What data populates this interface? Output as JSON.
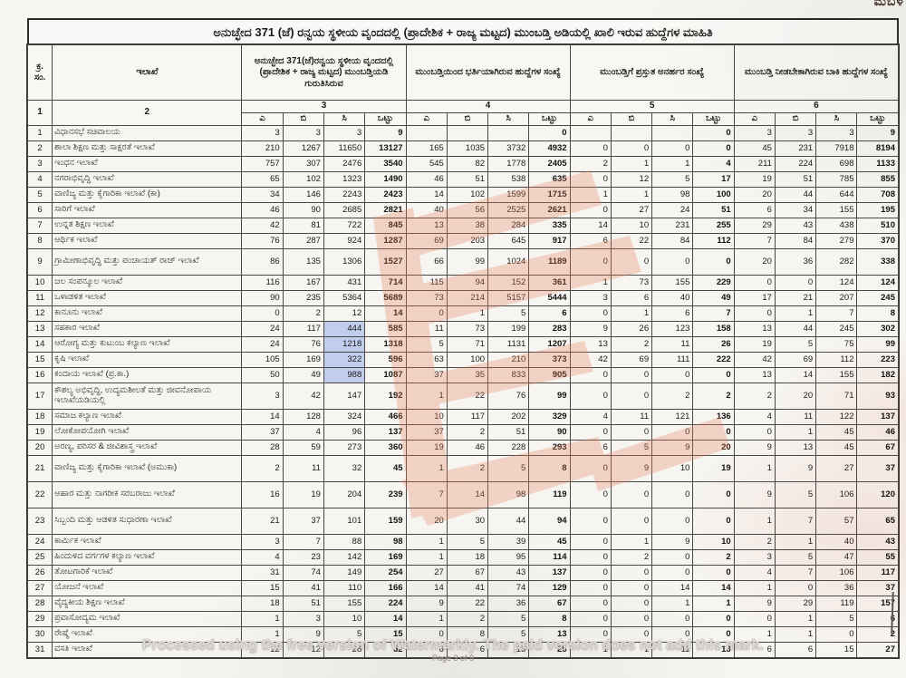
{
  "title": "ಅನುಚ್ಛೇದ 371 (ಜೆ) ರನ್ವಯ ಸ್ಥಳೀಯ ವೃಂದದಲ್ಲಿ (ಪ್ರಾದೇಶಿಕ + ರಾಜ್ಯ ಮಟ್ಟದ) ಮುಂಬಡ್ತಿ ಅಡಿಯಲ್ಲಿ ಖಾಲಿ ಇರುವ ಹುದ್ದೆಗಳ ಮಾಹಿತಿ",
  "corner_mark": "ಮಬಳ",
  "table": {
    "headers": {
      "sl_no": "ಕ್ರ. ಸಂ.",
      "department": "ಇಲಾಖೆ",
      "c3": "ಅನುಚ್ಛೇದ 371(ಜೆ)ರನ್ವಯ ಸ್ಥಳೀಯ ವೃಂದದಲ್ಲಿ (ಪ್ರಾದೇಶಿಕ + ರಾಜ್ಯ ಮಟ್ಟದ) ಮುಂಬಡ್ತಿಯಡಿ ಗುರುತಿಸಿರುವ",
      "c4": "ಮುಂಬಡ್ತಿಯಿಂದ ಭರ್ತಿಯಾಗಿರುವ ಹುದ್ದೆಗಳ ಸಂಖ್ಯೆ",
      "c5": "ಮುಂಬಡ್ತಿಗೆ ಪ್ರಸ್ತುತ ಅನರ್ಹರ ಸಂಖ್ಯೆ",
      "c6": "ಮುಂಬಡ್ತಿ ನೀಡಬೇಕಾಗಿರುವ ಬಾಕಿ ಹುದ್ದೆಗಳ ಸಂಖ್ಯೆ"
    },
    "col_numbers": [
      "1",
      "2",
      "3",
      "4",
      "5",
      "6"
    ],
    "sub_headers": [
      "ಎ",
      "ಬಿ",
      "ಸಿ",
      "ಒಟ್ಟು"
    ],
    "rows": [
      {
        "no": "1",
        "dept": "ವಿಧಾನಸಭೆ ಸಚಿವಾಲಯ",
        "c3": [
          "3",
          "3",
          "3",
          "9"
        ],
        "c4": [
          "",
          "",
          "",
          "0"
        ],
        "c5": [
          "",
          "",
          "",
          "0"
        ],
        "c6": [
          "3",
          "3",
          "3",
          "9"
        ]
      },
      {
        "no": "2",
        "dept": "ಶಾಲಾ ಶಿಕ್ಷಣ ಮತ್ತು ಸಾಕ್ಷರತೆ ಇಲಾಖೆ",
        "c3": [
          "210",
          "1267",
          "11650",
          "13127"
        ],
        "c4": [
          "165",
          "1035",
          "3732",
          "4932"
        ],
        "c5": [
          "0",
          "0",
          "0",
          "0"
        ],
        "c6": [
          "45",
          "231",
          "7918",
          "8194"
        ]
      },
      {
        "no": "3",
        "dept": "ಇಂಧನ ಇಲಾಖೆ",
        "c3": [
          "757",
          "307",
          "2476",
          "3540"
        ],
        "c4": [
          "545",
          "82",
          "1778",
          "2405"
        ],
        "c5": [
          "2",
          "1",
          "1",
          "4"
        ],
        "c6": [
          "211",
          "224",
          "698",
          "1133"
        ]
      },
      {
        "no": "4",
        "dept": "ನಗರಾಭಿವೃದ್ಧಿ ಇಲಾಖೆ",
        "c3": [
          "65",
          "102",
          "1323",
          "1490"
        ],
        "c4": [
          "46",
          "51",
          "538",
          "635"
        ],
        "c5": [
          "0",
          "12",
          "5",
          "17"
        ],
        "c6": [
          "19",
          "51",
          "785",
          "855"
        ]
      },
      {
        "no": "5",
        "dept": "ವಾಣಿಜ್ಯ ಮತ್ತು ಕೈಗಾರಿಕಾ ಇಲಾಖೆ (ಕಾ)",
        "c3": [
          "34",
          "146",
          "2243",
          "2423"
        ],
        "c4": [
          "14",
          "102",
          "1599",
          "1715"
        ],
        "c5": [
          "1",
          "1",
          "98",
          "100"
        ],
        "c6": [
          "20",
          "44",
          "644",
          "708"
        ]
      },
      {
        "no": "6",
        "dept": "ಸಾರಿಗೆ ಇಲಾಖೆ",
        "c3": [
          "46",
          "90",
          "2685",
          "2821"
        ],
        "c4": [
          "40",
          "56",
          "2525",
          "2621"
        ],
        "c5": [
          "0",
          "27",
          "24",
          "51"
        ],
        "c6": [
          "6",
          "34",
          "155",
          "195"
        ]
      },
      {
        "no": "7",
        "dept": "ಉನ್ನತ ಶಿಕ್ಷಣ ಇಲಾಖೆ",
        "c3": [
          "42",
          "81",
          "722",
          "845"
        ],
        "c4": [
          "13",
          "38",
          "284",
          "335"
        ],
        "c5": [
          "14",
          "10",
          "231",
          "255"
        ],
        "c6": [
          "29",
          "43",
          "438",
          "510"
        ]
      },
      {
        "no": "8",
        "dept": "ಆರ್ಥಿಕ ಇಲಾಖೆ",
        "c3": [
          "76",
          "287",
          "924",
          "1287"
        ],
        "c4": [
          "69",
          "203",
          "645",
          "917"
        ],
        "c5": [
          "6",
          "22",
          "84",
          "112"
        ],
        "c6": [
          "7",
          "84",
          "279",
          "370"
        ]
      },
      {
        "no": "9",
        "dept": "ಗ್ರಾಮೀಣಾಭಿವೃದ್ಧಿ ಮತ್ತು ಪಂಚಾಯತ್ ರಾಜ್ ಇಲಾಖೆ",
        "tall": true,
        "c3": [
          "86",
          "135",
          "1306",
          "1527"
        ],
        "c4": [
          "66",
          "99",
          "1024",
          "1189"
        ],
        "c5": [
          "0",
          "0",
          "0",
          "0"
        ],
        "c6": [
          "20",
          "36",
          "282",
          "338"
        ]
      },
      {
        "no": "10",
        "dept": "ಜಲ ಸಂಪನ್ಮೂಲ ಇಲಾಖೆ",
        "c3": [
          "116",
          "167",
          "431",
          "714"
        ],
        "c4": [
          "115",
          "94",
          "152",
          "361"
        ],
        "c5": [
          "1",
          "73",
          "155",
          "229"
        ],
        "c6": [
          "0",
          "0",
          "124",
          "124"
        ]
      },
      {
        "no": "11",
        "dept": "ಒಳಾಡಳಿತ ಇಲಾಖೆ",
        "c3": [
          "90",
          "235",
          "5364",
          "5689"
        ],
        "c4": [
          "73",
          "214",
          "5157",
          "5444"
        ],
        "c5": [
          "3",
          "6",
          "40",
          "49"
        ],
        "c6": [
          "17",
          "21",
          "207",
          "245"
        ]
      },
      {
        "no": "12",
        "dept": "ಕಾನೂನು ಇಲಾಖೆ",
        "c3": [
          "0",
          "2",
          "12",
          "14"
        ],
        "c4": [
          "0",
          "1",
          "5",
          "6"
        ],
        "c5": [
          "0",
          "1",
          "6",
          "7"
        ],
        "c6": [
          "0",
          "1",
          "7",
          "8"
        ]
      },
      {
        "no": "13",
        "dept": "ಸಹಕಾರ ಇಲಾಖೆ",
        "hl": true,
        "c3": [
          "24",
          "117",
          "444",
          "585"
        ],
        "c4": [
          "11",
          "73",
          "199",
          "283"
        ],
        "c5": [
          "9",
          "26",
          "123",
          "158"
        ],
        "c6": [
          "13",
          "44",
          "245",
          "302"
        ]
      },
      {
        "no": "14",
        "dept": "ಆರೋಗ್ಯ ಮತ್ತು ಕುಟುಂಬ ಕಲ್ಯಾಣ ಇಲಾಖೆ",
        "hl": true,
        "c3": [
          "24",
          "76",
          "1218",
          "1318"
        ],
        "c4": [
          "5",
          "71",
          "1131",
          "1207"
        ],
        "c5": [
          "13",
          "2",
          "11",
          "26"
        ],
        "c6": [
          "19",
          "5",
          "75",
          "99"
        ]
      },
      {
        "no": "15",
        "dept": "ಕೃಷಿ ಇಲಾಖೆ",
        "hl": true,
        "c3": [
          "105",
          "169",
          "322",
          "596"
        ],
        "c4": [
          "63",
          "100",
          "210",
          "373"
        ],
        "c5": [
          "42",
          "69",
          "111",
          "222"
        ],
        "c6": [
          "42",
          "69",
          "112",
          "223"
        ]
      },
      {
        "no": "16",
        "dept": "ಕಂದಾಯ ಇಲಾಖೆ (ಪ್ರ.ಕಾ.)",
        "hl": true,
        "c3": [
          "50",
          "49",
          "988",
          "1087"
        ],
        "c4": [
          "37",
          "35",
          "833",
          "905"
        ],
        "c5": [
          "0",
          "0",
          "0",
          "0"
        ],
        "c6": [
          "13",
          "14",
          "155",
          "182"
        ]
      },
      {
        "no": "17",
        "dept": "ಕೌಶಲ್ಯ ಅಭಿವೃದ್ಧಿ, ಉದ್ಯಮಶೀಲತೆ ಮತ್ತು ಜೀವನೋಪಾಯ ಇಲಾಖೆಯಡಿಯಲ್ಲಿ",
        "tall": true,
        "c3": [
          "3",
          "42",
          "147",
          "192"
        ],
        "c4": [
          "1",
          "22",
          "76",
          "99"
        ],
        "c5": [
          "0",
          "0",
          "2",
          "2"
        ],
        "c6": [
          "2",
          "20",
          "71",
          "93"
        ]
      },
      {
        "no": "18",
        "dept": "ಸಮಾಜ ಕಲ್ಯಾಣ ಇಲಾಖೆ",
        "c3": [
          "14",
          "128",
          "324",
          "466"
        ],
        "c4": [
          "10",
          "117",
          "202",
          "329"
        ],
        "c5": [
          "4",
          "11",
          "121",
          "136"
        ],
        "c6": [
          "4",
          "11",
          "122",
          "137"
        ]
      },
      {
        "no": "19",
        "dept": "ಲೋಕೋಪಯೋಗಿ ಇಲಾಖೆ",
        "c3": [
          "37",
          "4",
          "96",
          "137"
        ],
        "c4": [
          "37",
          "2",
          "51",
          "90"
        ],
        "c5": [
          "0",
          "0",
          "0",
          "0"
        ],
        "c6": [
          "0",
          "1",
          "45",
          "46"
        ]
      },
      {
        "no": "20",
        "dept": "ಅರಣ್ಯ, ಪರಿಸರ & ಜೀವಿಶಾಸ್ತ್ರ ಇಲಾಖೆ",
        "c3": [
          "28",
          "59",
          "273",
          "360"
        ],
        "c4": [
          "19",
          "46",
          "228",
          "293"
        ],
        "c5": [
          "6",
          "5",
          "9",
          "20"
        ],
        "c6": [
          "9",
          "13",
          "45",
          "67"
        ]
      },
      {
        "no": "21",
        "dept": "ವಾಣಿಜ್ಯ ಮತ್ತು ಕೈಗಾರಿಕಾ ಇಲಾಖೆ (ಅಮುಕಾ)",
        "tall": true,
        "c3": [
          "2",
          "11",
          "32",
          "45"
        ],
        "c4": [
          "1",
          "2",
          "5",
          "8"
        ],
        "c5": [
          "0",
          "9",
          "10",
          "19"
        ],
        "c6": [
          "1",
          "9",
          "27",
          "37"
        ]
      },
      {
        "no": "22",
        "dept": "ಆಹಾರ ಮತ್ತು ನಾಗರೀಕ ಸರಬರಾಜು ಇಲಾಖೆ",
        "tall": true,
        "c3": [
          "16",
          "19",
          "204",
          "239"
        ],
        "c4": [
          "7",
          "14",
          "98",
          "119"
        ],
        "c5": [
          "0",
          "0",
          "0",
          "0"
        ],
        "c6": [
          "9",
          "5",
          "106",
          "120"
        ]
      },
      {
        "no": "23",
        "dept": "ಸಿಬ್ಬಂದಿ ಮತ್ತು ಆಡಳಿತ ಸುಧಾರಣಾ ಇಲಾಖೆ",
        "tall": true,
        "c3": [
          "21",
          "37",
          "101",
          "159"
        ],
        "c4": [
          "20",
          "30",
          "44",
          "94"
        ],
        "c5": [
          "0",
          "0",
          "0",
          "0"
        ],
        "c6": [
          "1",
          "7",
          "57",
          "65"
        ]
      },
      {
        "no": "24",
        "dept": "ಕಾರ್ಮಿಕ ಇಲಾಖೆ",
        "c3": [
          "3",
          "7",
          "88",
          "98"
        ],
        "c4": [
          "1",
          "5",
          "39",
          "45"
        ],
        "c5": [
          "0",
          "1",
          "9",
          "10"
        ],
        "c6": [
          "2",
          "1",
          "40",
          "43"
        ]
      },
      {
        "no": "25",
        "dept": "ಹಿಂದುಳಿದ ವರ್ಗಗಳ ಕಲ್ಯಾಣ ಇಲಾಖೆ",
        "c3": [
          "4",
          "23",
          "142",
          "169"
        ],
        "c4": [
          "1",
          "18",
          "95",
          "114"
        ],
        "c5": [
          "0",
          "2",
          "0",
          "2"
        ],
        "c6": [
          "3",
          "5",
          "47",
          "55"
        ]
      },
      {
        "no": "26",
        "dept": "ತೋಟಗಾರಿಕೆ ಇಲಾಖೆ",
        "c3": [
          "31",
          "74",
          "149",
          "254"
        ],
        "c4": [
          "27",
          "67",
          "43",
          "137"
        ],
        "c5": [
          "0",
          "0",
          "0",
          "0"
        ],
        "c6": [
          "4",
          "7",
          "106",
          "117"
        ]
      },
      {
        "no": "27",
        "dept": "ಯೋಜನೆ ಇಲಾಖೆ",
        "c3": [
          "15",
          "41",
          "110",
          "166"
        ],
        "c4": [
          "14",
          "41",
          "74",
          "129"
        ],
        "c5": [
          "0",
          "0",
          "14",
          "14"
        ],
        "c6": [
          "1",
          "0",
          "36",
          "37"
        ]
      },
      {
        "no": "28",
        "dept": "ವೈದ್ಯಕೀಯ ಶಿಕ್ಷಣ ಇಲಾಖೆ",
        "c3": [
          "18",
          "51",
          "155",
          "224"
        ],
        "c4": [
          "9",
          "22",
          "36",
          "67"
        ],
        "c5": [
          "0",
          "0",
          "1",
          "1"
        ],
        "c6": [
          "9",
          "29",
          "119",
          "157"
        ]
      },
      {
        "no": "29",
        "dept": "ಪ್ರವಾಸೋದ್ಯಮ ಇಲಾಖೆ",
        "c3": [
          "1",
          "3",
          "10",
          "14"
        ],
        "c4": [
          "1",
          "2",
          "5",
          "8"
        ],
        "c5": [
          "0",
          "0",
          "0",
          "0"
        ],
        "c6": [
          "0",
          "1",
          "5",
          "6"
        ]
      },
      {
        "no": "30",
        "dept": "ರೇಷ್ಮೆ ಇಲಾಖೆ",
        "c3": [
          "1",
          "9",
          "5",
          "15"
        ],
        "c4": [
          "0",
          "8",
          "5",
          "13"
        ],
        "c5": [
          "0",
          "0",
          "0",
          "0"
        ],
        "c6": [
          "1",
          "1",
          "0",
          "2"
        ]
      },
      {
        "no": "31",
        "dept": "ವಸತಿ ಇಲಾಖೆ",
        "c3": [
          "12",
          "12",
          "28",
          "52"
        ],
        "c4": [
          "6",
          "6",
          "13",
          "25"
        ],
        "c5": [
          "1",
          "1",
          "11",
          "13"
        ],
        "c6": [
          "6",
          "6",
          "15",
          "27"
        ]
      }
    ]
  },
  "footer": {
    "watermark_text": "Processed using the free version of Watermarkly. The paid version does not add this mark.",
    "page_label": "Page 3 of 8"
  },
  "colors": {
    "watermark_logo": "#e8815c",
    "highlight_blue": "#7696e8",
    "paper": "#f6f5f1"
  }
}
